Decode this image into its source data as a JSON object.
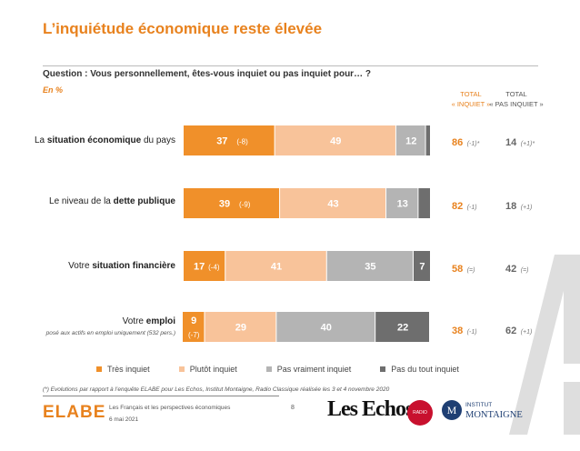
{
  "header": {
    "title": "L’inquiétude économique reste élevée",
    "question": "Question : Vous personnellement, êtes-vous inquiet ou pas inquiet pour… ?",
    "unit": "En %"
  },
  "totals_header": {
    "inquiet_line1": "TOTAL",
    "inquiet_line2": "« INQUIET »",
    "pas_line1": "TOTAL",
    "pas_line2": "« PAS INQUIET »"
  },
  "colors": {
    "tres_inquiet": "#f0902a",
    "plutot_inquiet": "#f8c39a",
    "pas_vraiment": "#b4b4b4",
    "pas_du_tout": "#6e6e6e"
  },
  "rows": [
    {
      "label_pre": "La ",
      "label_bold": "situation économique",
      "label_post": " du pays",
      "note": "",
      "total_inquiet": "86",
      "diff_inquiet": "(-1)*",
      "total_pas": "14",
      "diff_pas": "(+1)*"
    },
    {
      "label_pre": "Le niveau de la ",
      "label_bold": "dette publique",
      "label_post": "",
      "note": "",
      "total_inquiet": "82",
      "diff_inquiet": "(-1)",
      "total_pas": "18",
      "diff_pas": "(+1)"
    },
    {
      "label_pre": "Votre ",
      "label_bold": "situation financière",
      "label_post": "",
      "note": "",
      "total_inquiet": "58",
      "diff_inquiet": "(=)",
      "total_pas": "42",
      "diff_pas": "(=)"
    },
    {
      "label_pre": "Votre ",
      "label_bold": "emploi",
      "label_post": "",
      "note": "posé aux actifs en emploi uniquement (532 pers.)",
      "total_inquiet": "38",
      "diff_inquiet": "(-1)",
      "total_pas": "62",
      "diff_pas": "(+1)"
    }
  ],
  "legend": [
    "Très inquiet",
    "Plutôt inquiet",
    "Pas vraiment inquiet",
    "Pas du tout inquiet"
  ],
  "chart_data": {
    "type": "bar",
    "orientation": "horizontal",
    "stacked": true,
    "categories": [
      "La situation économique du pays",
      "Le niveau de la dette publique",
      "Votre situation financière",
      "Votre emploi"
    ],
    "series": [
      {
        "name": "Très inquiet",
        "values": [
          37,
          39,
          17,
          9
        ],
        "diffs": [
          "(-8)",
          "(-9)",
          "(-4)",
          "(-7)"
        ]
      },
      {
        "name": "Plutôt inquiet",
        "values": [
          49,
          43,
          41,
          29
        ]
      },
      {
        "name": "Pas vraiment inquiet",
        "values": [
          12,
          13,
          35,
          40
        ]
      },
      {
        "name": "Pas du tout inquiet",
        "values": [
          2,
          5,
          7,
          22
        ]
      }
    ],
    "xlim": [
      0,
      100
    ],
    "grid": false,
    "legend_position": "bottom"
  },
  "footer": {
    "footnote": "(*) Evolutions par rapport à l’enquête ELABE pour Les Echos, Institut Montaigne, Radio Classique réalisée les 3 et 4 novembre 2020",
    "study": "Les Français et les perspectives économiques",
    "date": "6 mai 2021",
    "page": "8",
    "logo_elabe": "ELABE",
    "logo_echos": "Les Echos",
    "logo_radio": "RADIO CLASSIQUE",
    "logo_im_letter": "M",
    "logo_im_line1": "INSTITUT",
    "logo_im_line2": "MONTAIGNE"
  }
}
